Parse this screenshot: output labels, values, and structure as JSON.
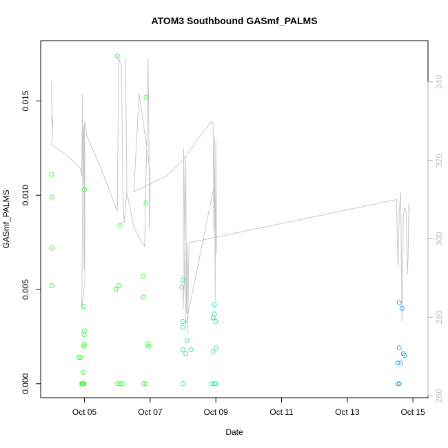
{
  "chart_data": {
    "type": "scatter",
    "title": "ATOM3 Southbound GASmf_PALMS",
    "xlabel": "Date",
    "ylabel": "GASmf_PALMS",
    "xlim": [
      "2017-10-03T16:00",
      "2017-10-15T11:00"
    ],
    "ylim": [
      -0.00074,
      0.0182
    ],
    "y2lim": [
      259.5,
      350.5
    ],
    "x_ticks": [
      {
        "date": "2017-10-05T00:00",
        "label": "Oct 05"
      },
      {
        "date": "2017-10-07T00:00",
        "label": "Oct 07"
      },
      {
        "date": "2017-10-09T00:00",
        "label": "Oct 09"
      },
      {
        "date": "2017-10-11T00:00",
        "label": "Oct 11"
      },
      {
        "date": "2017-10-13T00:00",
        "label": "Oct 13"
      },
      {
        "date": "2017-10-15T00:00",
        "label": "Oct 15"
      }
    ],
    "y_ticks": [
      {
        "value": 0.0,
        "label": "0.000"
      },
      {
        "value": 0.005,
        "label": "0.005"
      },
      {
        "value": 0.01,
        "label": "0.010"
      },
      {
        "value": 0.015,
        "label": "0.015"
      }
    ],
    "y2_ticks": [
      {
        "value": 260,
        "label": "260"
      },
      {
        "value": 280,
        "label": "280"
      },
      {
        "value": 300,
        "label": "300"
      },
      {
        "value": 320,
        "label": "320"
      },
      {
        "value": 340,
        "label": "340"
      }
    ],
    "grid": false,
    "secondary_line_color": "#c8c8c8",
    "secondary_line": [
      [
        "2017-10-04T00:00",
        340
      ],
      [
        "2017-10-04T00:10",
        330
      ],
      [
        "2017-10-04T00:20",
        328
      ],
      [
        "2017-10-04T00:30",
        331
      ],
      [
        "2017-10-04T01:00",
        330
      ],
      [
        "2017-10-04T00:00",
        324
      ],
      [
        "2017-10-04T12:00",
        321
      ],
      [
        "2017-10-04T21:00",
        318
      ],
      [
        "2017-10-04T22:00",
        316
      ],
      [
        "2017-10-04T22:30",
        337
      ],
      [
        "2017-10-04T22:50",
        315
      ],
      [
        "2017-10-04T23:00",
        316
      ],
      [
        "2017-10-04T23:30",
        329
      ],
      [
        "2017-10-04T23:40",
        292
      ],
      [
        "2017-10-05T00:00",
        300
      ],
      [
        "2017-10-05T00:10",
        325
      ],
      [
        "2017-10-05T00:20",
        289
      ],
      [
        "2017-10-04T22:00",
        282
      ],
      [
        "2017-10-04T23:00",
        327
      ],
      [
        "2017-10-05T00:00",
        313
      ],
      [
        "2017-10-05T00:00",
        330
      ],
      [
        "2017-10-05T02:00",
        326
      ],
      [
        "2017-10-05T12:00",
        318
      ],
      [
        "2017-10-06T00:00",
        307
      ],
      [
        "2017-10-06T01:00",
        346
      ],
      [
        "2017-10-06T03:00",
        344
      ],
      [
        "2017-10-06T04:00",
        312
      ],
      [
        "2017-10-06T05:00",
        304
      ],
      [
        "2017-10-06T07:00",
        312
      ],
      [
        "2017-10-06T06:00",
        346
      ],
      [
        "2017-10-06T07:00",
        312
      ],
      [
        "2017-10-06T12:00",
        303
      ],
      [
        "2017-10-06T18:00",
        299
      ],
      [
        "2017-10-06T20:00",
        298
      ],
      [
        "2017-10-06T21:00",
        316
      ],
      [
        "2017-10-06T22:00",
        330
      ],
      [
        "2017-10-06T22:30",
        346
      ],
      [
        "2017-10-06T23:00",
        329
      ],
      [
        "2017-10-06T23:30",
        302
      ],
      [
        "2017-10-06T23:45",
        304
      ],
      [
        "2017-10-07T00:00",
        317
      ],
      [
        "2017-10-06T16:00",
        337
      ],
      [
        "2017-10-06T12:00",
        312
      ],
      [
        "2017-10-07T12:00",
        316
      ],
      [
        "2017-10-08T00:00",
        320
      ],
      [
        "2017-10-08T12:00",
        326
      ],
      [
        "2017-10-08T21:00",
        330
      ],
      [
        "2017-10-08T22:00",
        329
      ],
      [
        "2017-10-08T22:30",
        302
      ],
      [
        "2017-10-08T23:00",
        326
      ],
      [
        "2017-10-08T23:30",
        284
      ],
      [
        "2017-10-09T00:00",
        325
      ],
      [
        "2017-10-09T00:30",
        296
      ],
      [
        "2017-10-08T23:00",
        314
      ],
      [
        "2017-10-08T02:00",
        278
      ],
      [
        "2017-10-08T00:30",
        323
      ],
      [
        "2017-10-08T00:00",
        282
      ],
      [
        "2017-10-08T01:00",
        289
      ],
      [
        "2017-10-08T02:00",
        321
      ],
      [
        "2017-10-08T02:30",
        281
      ],
      [
        "2017-10-08T03:00",
        299
      ],
      [
        "2017-10-08T03:30",
        276
      ],
      [
        "2017-10-08T04:00",
        293
      ],
      [
        "2017-10-08T04:30",
        299
      ],
      [
        "2017-10-14T12:00",
        310
      ],
      [
        "2017-10-14T13:00",
        293
      ],
      [
        "2017-10-14T14:00",
        307
      ],
      [
        "2017-10-14T15:00",
        312
      ],
      [
        "2017-10-14T16:00",
        279
      ],
      [
        "2017-10-14T17:00",
        306
      ],
      [
        "2017-10-14T18:00",
        308
      ],
      [
        "2017-10-14T19:00",
        307
      ],
      [
        "2017-10-14T20:00",
        291
      ],
      [
        "2017-10-14T20:30",
        296
      ],
      [
        "2017-10-14T21:00",
        309
      ],
      [
        "2017-10-14T21:30",
        307
      ]
    ],
    "series": [
      {
        "values": [
          [
            "2017-10-04T00:00",
            0.0111
          ],
          [
            "2017-10-04T00:00",
            0.0099
          ],
          [
            "2017-10-04T00:00",
            0.0072
          ],
          [
            "2017-10-04T00:00",
            0.0052
          ],
          [
            "2017-10-04T20:00",
            0.0014
          ],
          [
            "2017-10-04T21:00",
            0.0014
          ],
          [
            "2017-10-04T22:00",
            0.0
          ],
          [
            "2017-10-04T22:30",
            0.0
          ],
          [
            "2017-10-04T23:00",
            0.0
          ],
          [
            "2017-10-04T23:30",
            0.0
          ],
          [
            "2017-10-04T23:00",
            0.0006
          ],
          [
            "2017-10-04T23:30",
            0.002
          ],
          [
            "2017-10-05T00:00",
            0.0021
          ],
          [
            "2017-10-04T23:40",
            0.0026
          ],
          [
            "2017-10-05T00:00",
            0.0028
          ],
          [
            "2017-10-04T23:30",
            0.0041
          ],
          [
            "2017-10-05T00:00",
            0.0103
          ],
          [
            "2017-10-06T00:00",
            0.0174
          ],
          [
            "2017-10-06T02:00",
            0.0084
          ],
          [
            "2017-10-05T23:00",
            0.005
          ],
          [
            "2017-10-06T01:00",
            0.0052
          ],
          [
            "2017-10-06T00:00",
            0.0
          ],
          [
            "2017-10-06T02:00",
            0.0
          ],
          [
            "2017-10-06T04:00",
            0.0
          ],
          [
            "2017-10-06T21:00",
            0.0152
          ],
          [
            "2017-10-06T21:00",
            0.0096
          ],
          [
            "2017-10-06T19:00",
            0.0057
          ],
          [
            "2017-10-06T19:00",
            0.0046
          ],
          [
            "2017-10-06T22:00",
            0.0021
          ],
          [
            "2017-10-06T23:00",
            0.002
          ],
          [
            "2017-10-06T19:00",
            0.0
          ],
          [
            "2017-10-06T21:00",
            0.0
          ]
        ],
        "color": "#33ff33"
      },
      {
        "values": [
          [
            "2017-10-08T00:00",
            0.0055
          ],
          [
            "2017-10-07T23:00",
            0.0051
          ],
          [
            "2017-10-08T00:00",
            0.0033
          ],
          [
            "2017-10-08T00:00",
            0.003
          ],
          [
            "2017-10-08T03:00",
            0.0023
          ],
          [
            "2017-10-08T00:00",
            0.0018
          ],
          [
            "2017-10-08T02:00",
            0.0016
          ],
          [
            "2017-10-08T06:00",
            0.0018
          ],
          [
            "2017-10-08T00:00",
            0.0
          ],
          [
            "2017-10-08T23:00",
            0.0042
          ],
          [
            "2017-10-08T23:00",
            0.0037
          ],
          [
            "2017-10-08T22:00",
            0.0035
          ],
          [
            "2017-10-09T00:00",
            0.0033
          ],
          [
            "2017-10-09T00:00",
            0.0019
          ],
          [
            "2017-10-08T22:00",
            0.0017
          ],
          [
            "2017-10-08T21:00",
            0.0
          ],
          [
            "2017-10-08T23:00",
            0.0
          ],
          [
            "2017-10-09T00:00",
            0.0
          ]
        ],
        "color": "#22ee99"
      },
      {
        "values": [
          [
            "2017-10-14T14:00",
            0.0043
          ],
          [
            "2017-10-14T16:00",
            0.004
          ],
          [
            "2017-10-14T14:00",
            0.0019
          ],
          [
            "2017-10-14T17:00",
            0.0016
          ],
          [
            "2017-10-14T18:00",
            0.0015
          ],
          [
            "2017-10-14T13:00",
            0.0011
          ],
          [
            "2017-10-14T15:00",
            0.0011
          ],
          [
            "2017-10-14T13:00",
            0.0
          ],
          [
            "2017-10-14T14:00",
            0.0
          ]
        ],
        "color": "#2aa8e8"
      }
    ]
  }
}
